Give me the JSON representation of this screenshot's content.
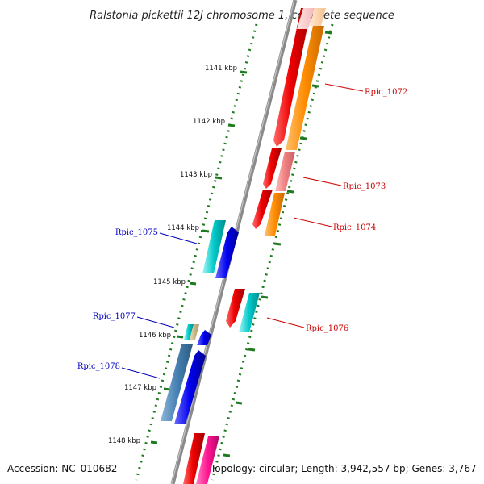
{
  "title": "Ralstonia pickettii 12J chromosome 1, complete sequence",
  "footer": {
    "accession": "Accession: NC_010682",
    "summary": "Topology: circular; Length: 3,942,557 bp; Genes: 3,767"
  },
  "scale_unit": "kbp",
  "ticks": [
    "1141 kbp",
    "1142 kbp",
    "1143 kbp",
    "1144 kbp",
    "1145 kbp",
    "1146 kbp",
    "1147 kbp",
    "1148 kbp"
  ],
  "genes": [
    {
      "label": "Rpic_1072",
      "strand": "forward",
      "color": "#cc0000"
    },
    {
      "label": "Rpic_1073",
      "strand": "forward",
      "color": "#cc0000"
    },
    {
      "label": "Rpic_1074",
      "strand": "forward",
      "color": "#cc0000"
    },
    {
      "label": "Rpic_1075",
      "strand": "reverse",
      "color": "#0000bb"
    },
    {
      "label": "Rpic_1076",
      "strand": "forward",
      "color": "#cc0000"
    },
    {
      "label": "Rpic_1077",
      "strand": "reverse",
      "color": "#0000bb"
    },
    {
      "label": "Rpic_1078",
      "strand": "reverse",
      "color": "#0000bb"
    }
  ],
  "colors": {
    "backbone": "#8a8a8a",
    "tick": "#1e7a1e",
    "forward_gene": "#ee0000",
    "reverse_gene": "#0000ee",
    "cds_orange": "#ff8c00",
    "cds_pink": "#f08080",
    "cds_cyan": "#00c8c8",
    "cds_steel": "#4682b4",
    "cds_tan": "#c8b478",
    "cds_magenta": "#ff1493"
  }
}
